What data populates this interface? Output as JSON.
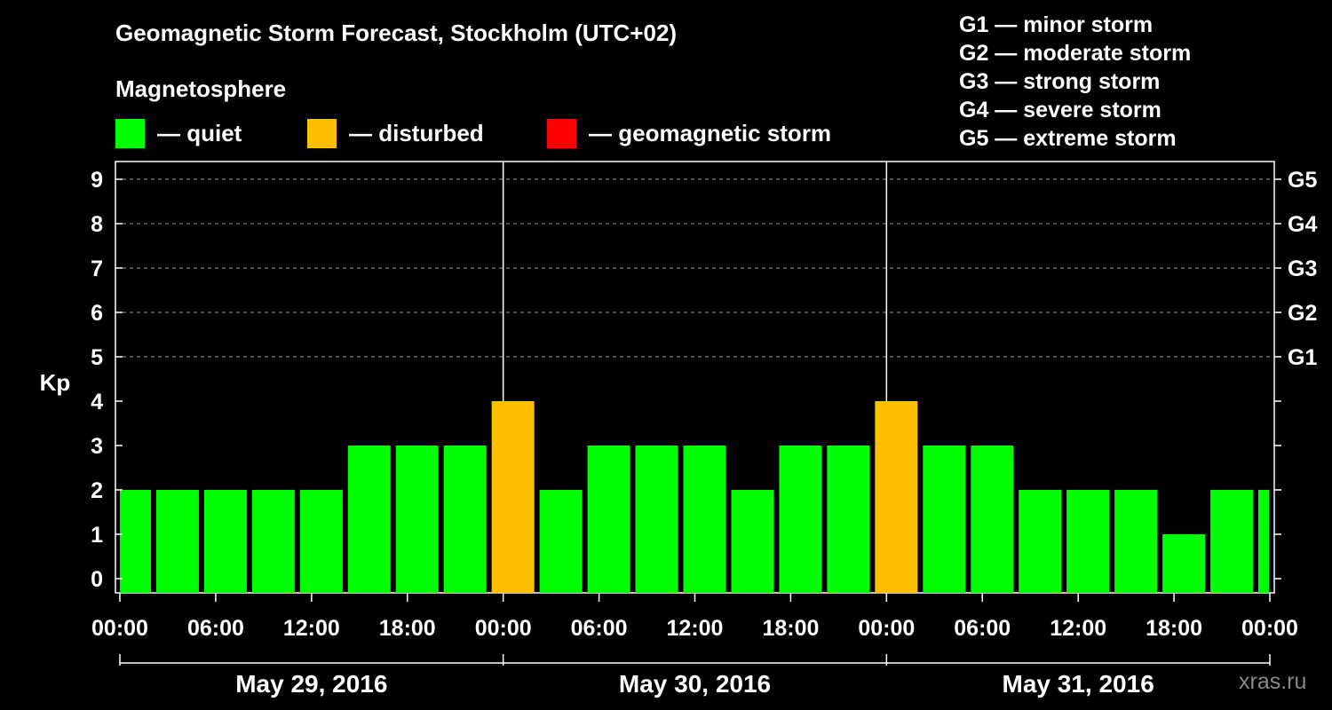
{
  "title": "Geomagnetic Storm Forecast, Stockholm (UTC+02)",
  "subtitle": "Magnetosphere",
  "legend": [
    {
      "label": "— quiet",
      "color": "#00ff00"
    },
    {
      "label": "— disturbed",
      "color": "#ffbf00"
    },
    {
      "label": "— geomagnetic storm",
      "color": "#ff0000"
    }
  ],
  "storm_scale": [
    "G1 — minor storm",
    "G2 — moderate storm",
    "G3 — strong storm",
    "G4 — severe storm",
    "G5 — extreme storm"
  ],
  "watermark": "xras.ru",
  "chart_data": {
    "type": "bar",
    "title": "Geomagnetic Storm Forecast, Stockholm (UTC+02)",
    "ylabel": "Kp",
    "ylim": [
      0,
      9
    ],
    "yticks": [
      "0",
      "1",
      "2",
      "3",
      "4",
      "5",
      "6",
      "7",
      "8",
      "9"
    ],
    "right_ticks": [
      {
        "kp": 5,
        "label": "G1"
      },
      {
        "kp": 6,
        "label": "G2"
      },
      {
        "kp": 7,
        "label": "G3"
      },
      {
        "kp": 8,
        "label": "G4"
      },
      {
        "kp": 9,
        "label": "G5"
      }
    ],
    "x_tick_labels": [
      "00:00",
      "06:00",
      "12:00",
      "18:00",
      "00:00",
      "06:00",
      "12:00",
      "18:00",
      "00:00",
      "06:00",
      "12:00",
      "18:00",
      "00:00"
    ],
    "days": [
      "May 29, 2016",
      "May 30, 2016",
      "May 31, 2016"
    ],
    "grid": "horizontal dashed at 5-9",
    "bar_interval_hours": 3,
    "values": [
      2,
      2,
      2,
      2,
      2,
      3,
      3,
      3,
      4,
      2,
      3,
      3,
      3,
      2,
      3,
      3,
      4,
      3,
      3,
      2,
      2,
      2,
      1,
      2,
      2
    ],
    "colors": {
      "quiet": "#00ff00",
      "disturbed": "#ffbf00",
      "storm": "#ff0000"
    }
  }
}
